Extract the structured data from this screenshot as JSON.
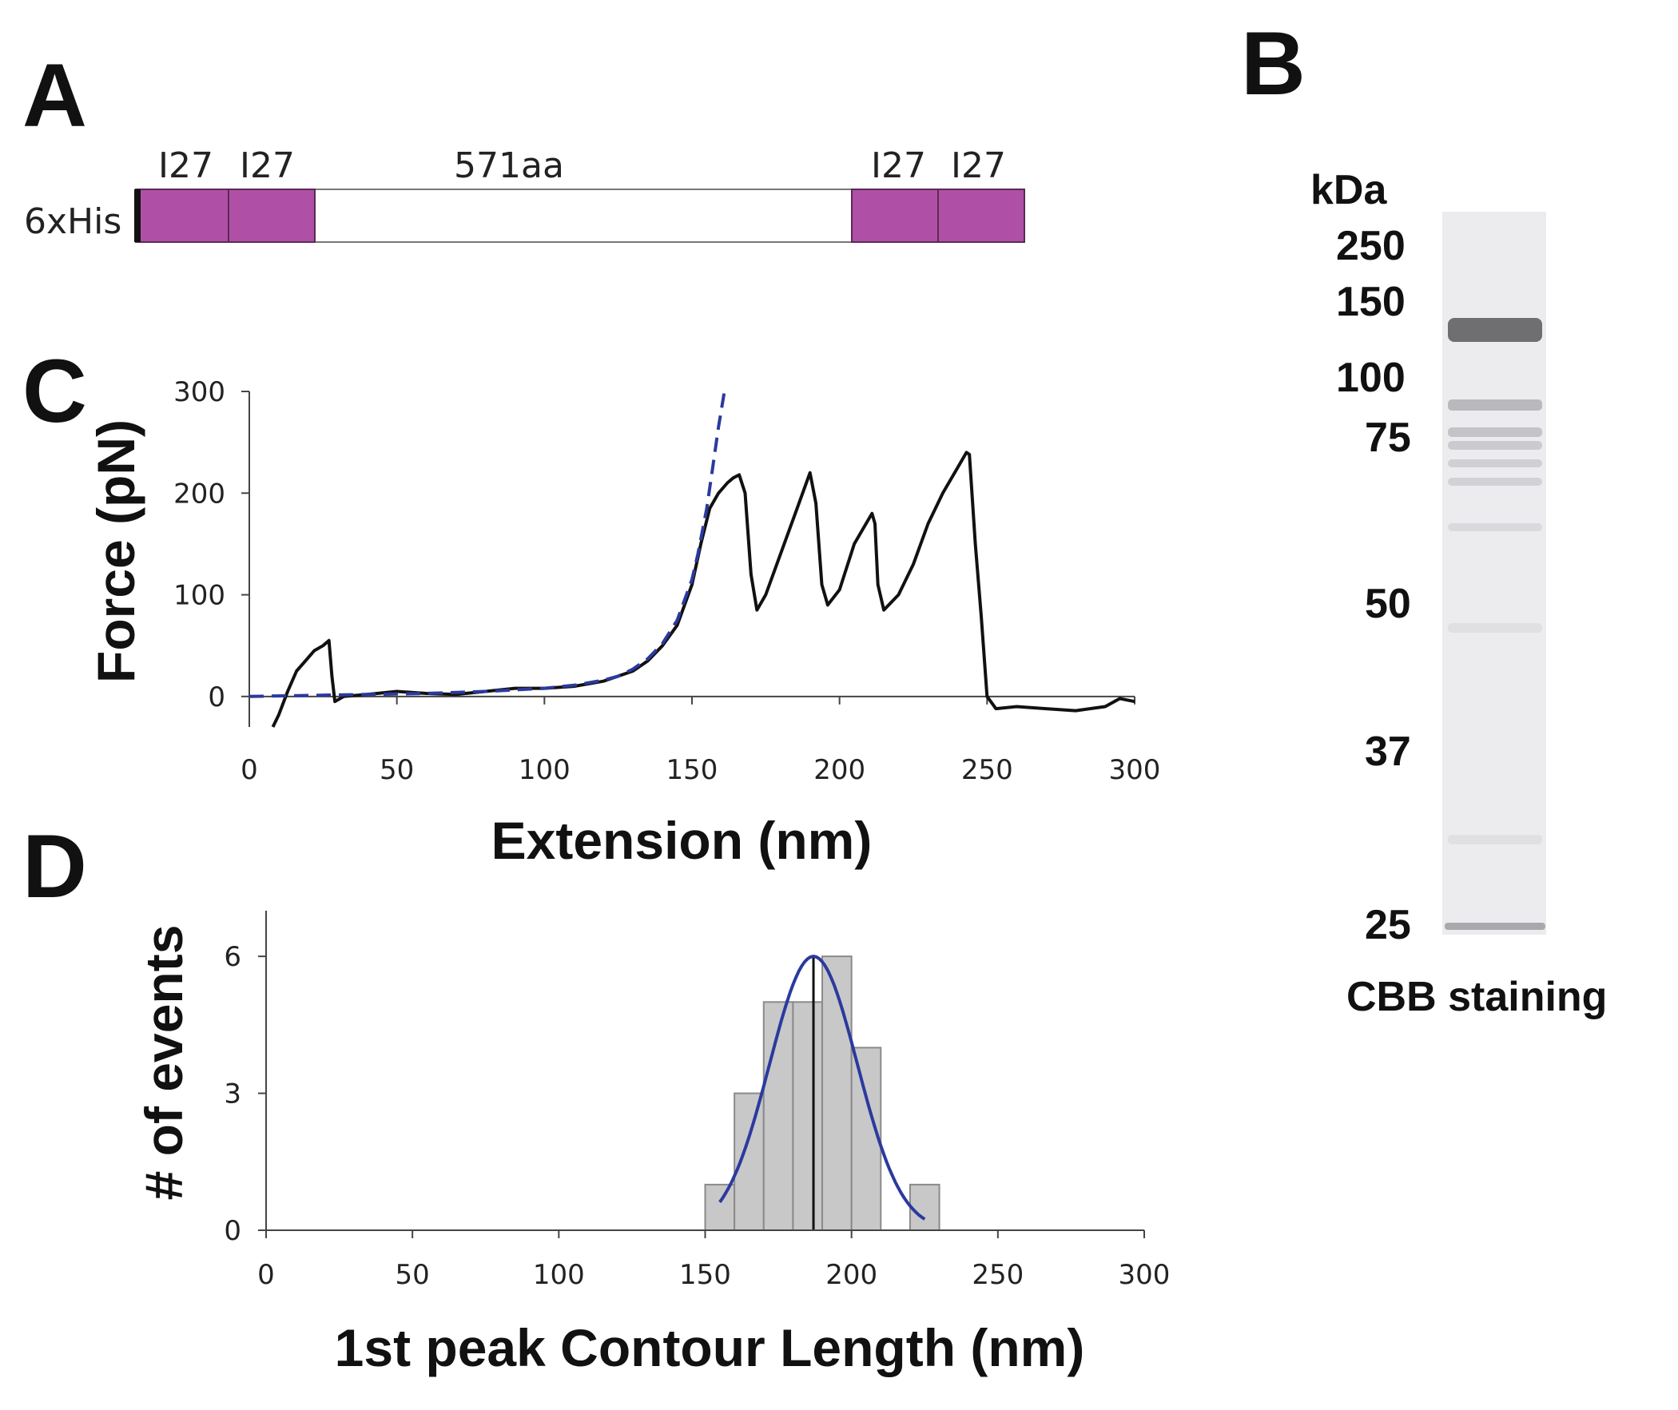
{
  "panels": {
    "A": "A",
    "B": "B",
    "C": "C",
    "D": "D"
  },
  "construct": {
    "tag_label": "6xHis",
    "domain_labels": [
      "I27",
      "I27",
      "571aa",
      "I27",
      "I27"
    ],
    "domain_color": "#B04FA6"
  },
  "gel": {
    "unit_label": "kDa",
    "markers": [
      "250",
      "150",
      "100",
      "75",
      "50",
      "37",
      "25"
    ],
    "caption": "CBB staining"
  },
  "chart_data": [
    {
      "type": "line",
      "xlabel": "Extension (nm)",
      "ylabel": "Force (pN)",
      "xlim": [
        0,
        300
      ],
      "ylim": [
        -30,
        300
      ],
      "xticks": [
        0,
        50,
        100,
        150,
        200,
        250,
        300
      ],
      "yticks": [
        0,
        100,
        200,
        300
      ],
      "grid": false,
      "series": [
        {
          "color": "#111111",
          "style": "solid",
          "x": [
            8,
            10,
            13,
            16,
            19,
            22,
            25,
            27,
            28,
            29,
            32,
            40,
            50,
            60,
            70,
            80,
            90,
            100,
            110,
            120,
            130,
            135,
            140,
            145,
            150,
            153,
            156,
            159,
            162,
            164,
            166,
            168,
            170,
            172,
            175,
            180,
            185,
            190,
            192,
            194,
            196,
            200,
            205,
            208,
            211,
            212,
            213,
            215,
            220,
            225,
            230,
            235,
            240,
            243,
            244,
            246,
            248,
            250,
            253,
            260,
            270,
            280,
            290,
            295,
            300
          ],
          "y": [
            -30,
            -18,
            5,
            25,
            35,
            45,
            50,
            55,
            20,
            -5,
            0,
            2,
            5,
            3,
            2,
            5,
            8,
            8,
            10,
            15,
            25,
            35,
            50,
            70,
            110,
            150,
            185,
            200,
            210,
            215,
            218,
            200,
            120,
            85,
            100,
            140,
            180,
            220,
            190,
            110,
            90,
            105,
            150,
            165,
            180,
            170,
            110,
            85,
            100,
            130,
            170,
            200,
            225,
            240,
            238,
            150,
            80,
            0,
            -12,
            -10,
            -12,
            -14,
            -10,
            -2,
            -5
          ]
        },
        {
          "color": "#2B3A9E",
          "style": "dashed",
          "x": [
            0,
            20,
            40,
            60,
            80,
            100,
            110,
            120,
            125,
            130,
            135,
            140,
            145,
            150,
            152,
            155,
            157,
            159,
            161
          ],
          "y": [
            0,
            1,
            2,
            3,
            5,
            8,
            11,
            16,
            20,
            27,
            37,
            52,
            75,
            115,
            140,
            185,
            225,
            265,
            300
          ]
        }
      ]
    },
    {
      "type": "bar",
      "xlabel": "1st peak Contour Length (nm)",
      "ylabel": "# of events",
      "xlim": [
        0,
        300
      ],
      "ylim": [
        0,
        7
      ],
      "xticks": [
        0,
        50,
        100,
        150,
        200,
        250,
        300
      ],
      "yticks": [
        0,
        3,
        6
      ],
      "grid": false,
      "bin_width": 10,
      "bin_starts": [
        150,
        160,
        170,
        180,
        190,
        200,
        210,
        220
      ],
      "values": [
        1,
        3,
        5,
        5,
        6,
        4,
        0,
        1
      ],
      "bar_color": "#C8C8C8",
      "fit": {
        "type": "gaussian",
        "color": "#2B3A9E",
        "amplitude": 6,
        "mean": 187,
        "sigma": 15,
        "x_range": [
          155,
          225
        ]
      }
    }
  ]
}
